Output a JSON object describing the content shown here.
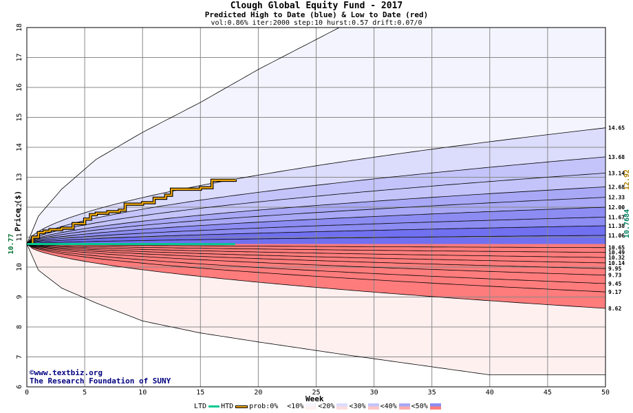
{
  "header": {
    "title": "Clough Global Equity Fund - 2017",
    "subtitle": "Predicted High to Date (blue) &  Low to Date (red)",
    "params": "vol:0.86% iter:2000 step:10 hurst:0.57 drift:0.07/0"
  },
  "credits": {
    "site": "©www.textbiz.org",
    "org": "The Research Foundation of SUNY"
  },
  "legend": {
    "ltd": "LTD",
    "htd": "HTD",
    "prob": "prob:0%",
    "bands": [
      "<10%",
      "<20%",
      "<30%",
      "<40%",
      "<50%"
    ]
  },
  "colors": {
    "htd": "#f0a800",
    "ltd": "#00c890",
    "blue_bands": [
      "#f4f4ff",
      "#dcdcfc",
      "#c4c4fa",
      "#a8a8f6",
      "#8c8cf2",
      "#7070f0"
    ],
    "red_bands": [
      "#fff0f0",
      "#ffdcdc",
      "#ffc4c4",
      "#ffacac",
      "#ff9494",
      "#ff7c7c"
    ],
    "current_price": "#007030",
    "last_high": "#b08000",
    "last_low": "#008060"
  },
  "chart_data": {
    "type": "area",
    "title": "Clough Global Equity Fund - 2017",
    "subtitle": "Predicted High to Date (blue) &  Low to Date (red)",
    "xlabel": "Week",
    "ylabel": "Price ($)",
    "xlim": [
      0,
      50
    ],
    "ylim": [
      6,
      18
    ],
    "x_ticks": [
      0,
      5,
      10,
      15,
      20,
      25,
      30,
      35,
      40,
      45,
      50
    ],
    "y_ticks": [
      6,
      7,
      8,
      9,
      10,
      11,
      12,
      13,
      14,
      15,
      16,
      17,
      18
    ],
    "grid": true,
    "start_price": 10.77,
    "start_label": "10.77",
    "last_high_label": "12.92",
    "last_low_label": "10.7684",
    "high_envelope": {
      "x": [
        0,
        1,
        3,
        6,
        10,
        15,
        20,
        27,
        50
      ],
      "y": [
        10.77,
        11.7,
        12.6,
        13.6,
        14.5,
        15.5,
        16.6,
        18.0,
        18.0
      ]
    },
    "low_envelope": {
      "x": [
        0,
        1,
        3,
        6,
        10,
        15,
        20,
        27,
        40,
        50
      ],
      "y": [
        10.77,
        9.9,
        9.3,
        8.8,
        8.2,
        7.8,
        7.5,
        7.1,
        6.4,
        6.4
      ]
    },
    "high_quantiles": [
      {
        "label": "14.65",
        "end": 14.65
      },
      {
        "label": "13.68",
        "end": 13.68
      },
      {
        "label": "13.14",
        "end": 13.14
      },
      {
        "label": "12.68",
        "end": 12.68
      },
      {
        "label": "12.33",
        "end": 12.33
      },
      {
        "label": "12.00",
        "end": 12.0
      },
      {
        "label": "11.67",
        "end": 11.67
      },
      {
        "label": "11.38",
        "end": 11.38
      },
      {
        "label": "11.06",
        "end": 11.06
      }
    ],
    "low_quantiles": [
      {
        "label": "10.65",
        "end": 10.65
      },
      {
        "label": "10.49",
        "end": 10.49
      },
      {
        "label": "10.32",
        "end": 10.32
      },
      {
        "label": "10.14",
        "end": 10.14
      },
      {
        "label": "9.95",
        "end": 9.95
      },
      {
        "label": "9.73",
        "end": 9.73
      },
      {
        "label": "9.45",
        "end": 9.45
      },
      {
        "label": "9.17",
        "end": 9.17
      },
      {
        "label": "8.62",
        "end": 8.62
      }
    ],
    "series": [
      {
        "name": "HTD",
        "x": [
          0,
          0.5,
          1,
          1.5,
          2,
          3,
          4,
          5,
          5.5,
          6,
          7,
          8,
          8.5,
          10,
          11,
          12,
          12.5,
          15,
          16,
          18
        ],
        "y": [
          10.77,
          11.0,
          11.15,
          11.2,
          11.25,
          11.3,
          11.45,
          11.6,
          11.75,
          11.8,
          11.85,
          11.9,
          12.1,
          12.15,
          12.3,
          12.4,
          12.6,
          12.65,
          12.9,
          12.92
        ]
      },
      {
        "name": "LTD",
        "x": [
          0,
          2,
          5,
          10,
          12.5,
          13,
          18
        ],
        "y": [
          10.77,
          10.77,
          10.77,
          10.77,
          10.77,
          10.7684,
          10.7684
        ]
      }
    ]
  }
}
